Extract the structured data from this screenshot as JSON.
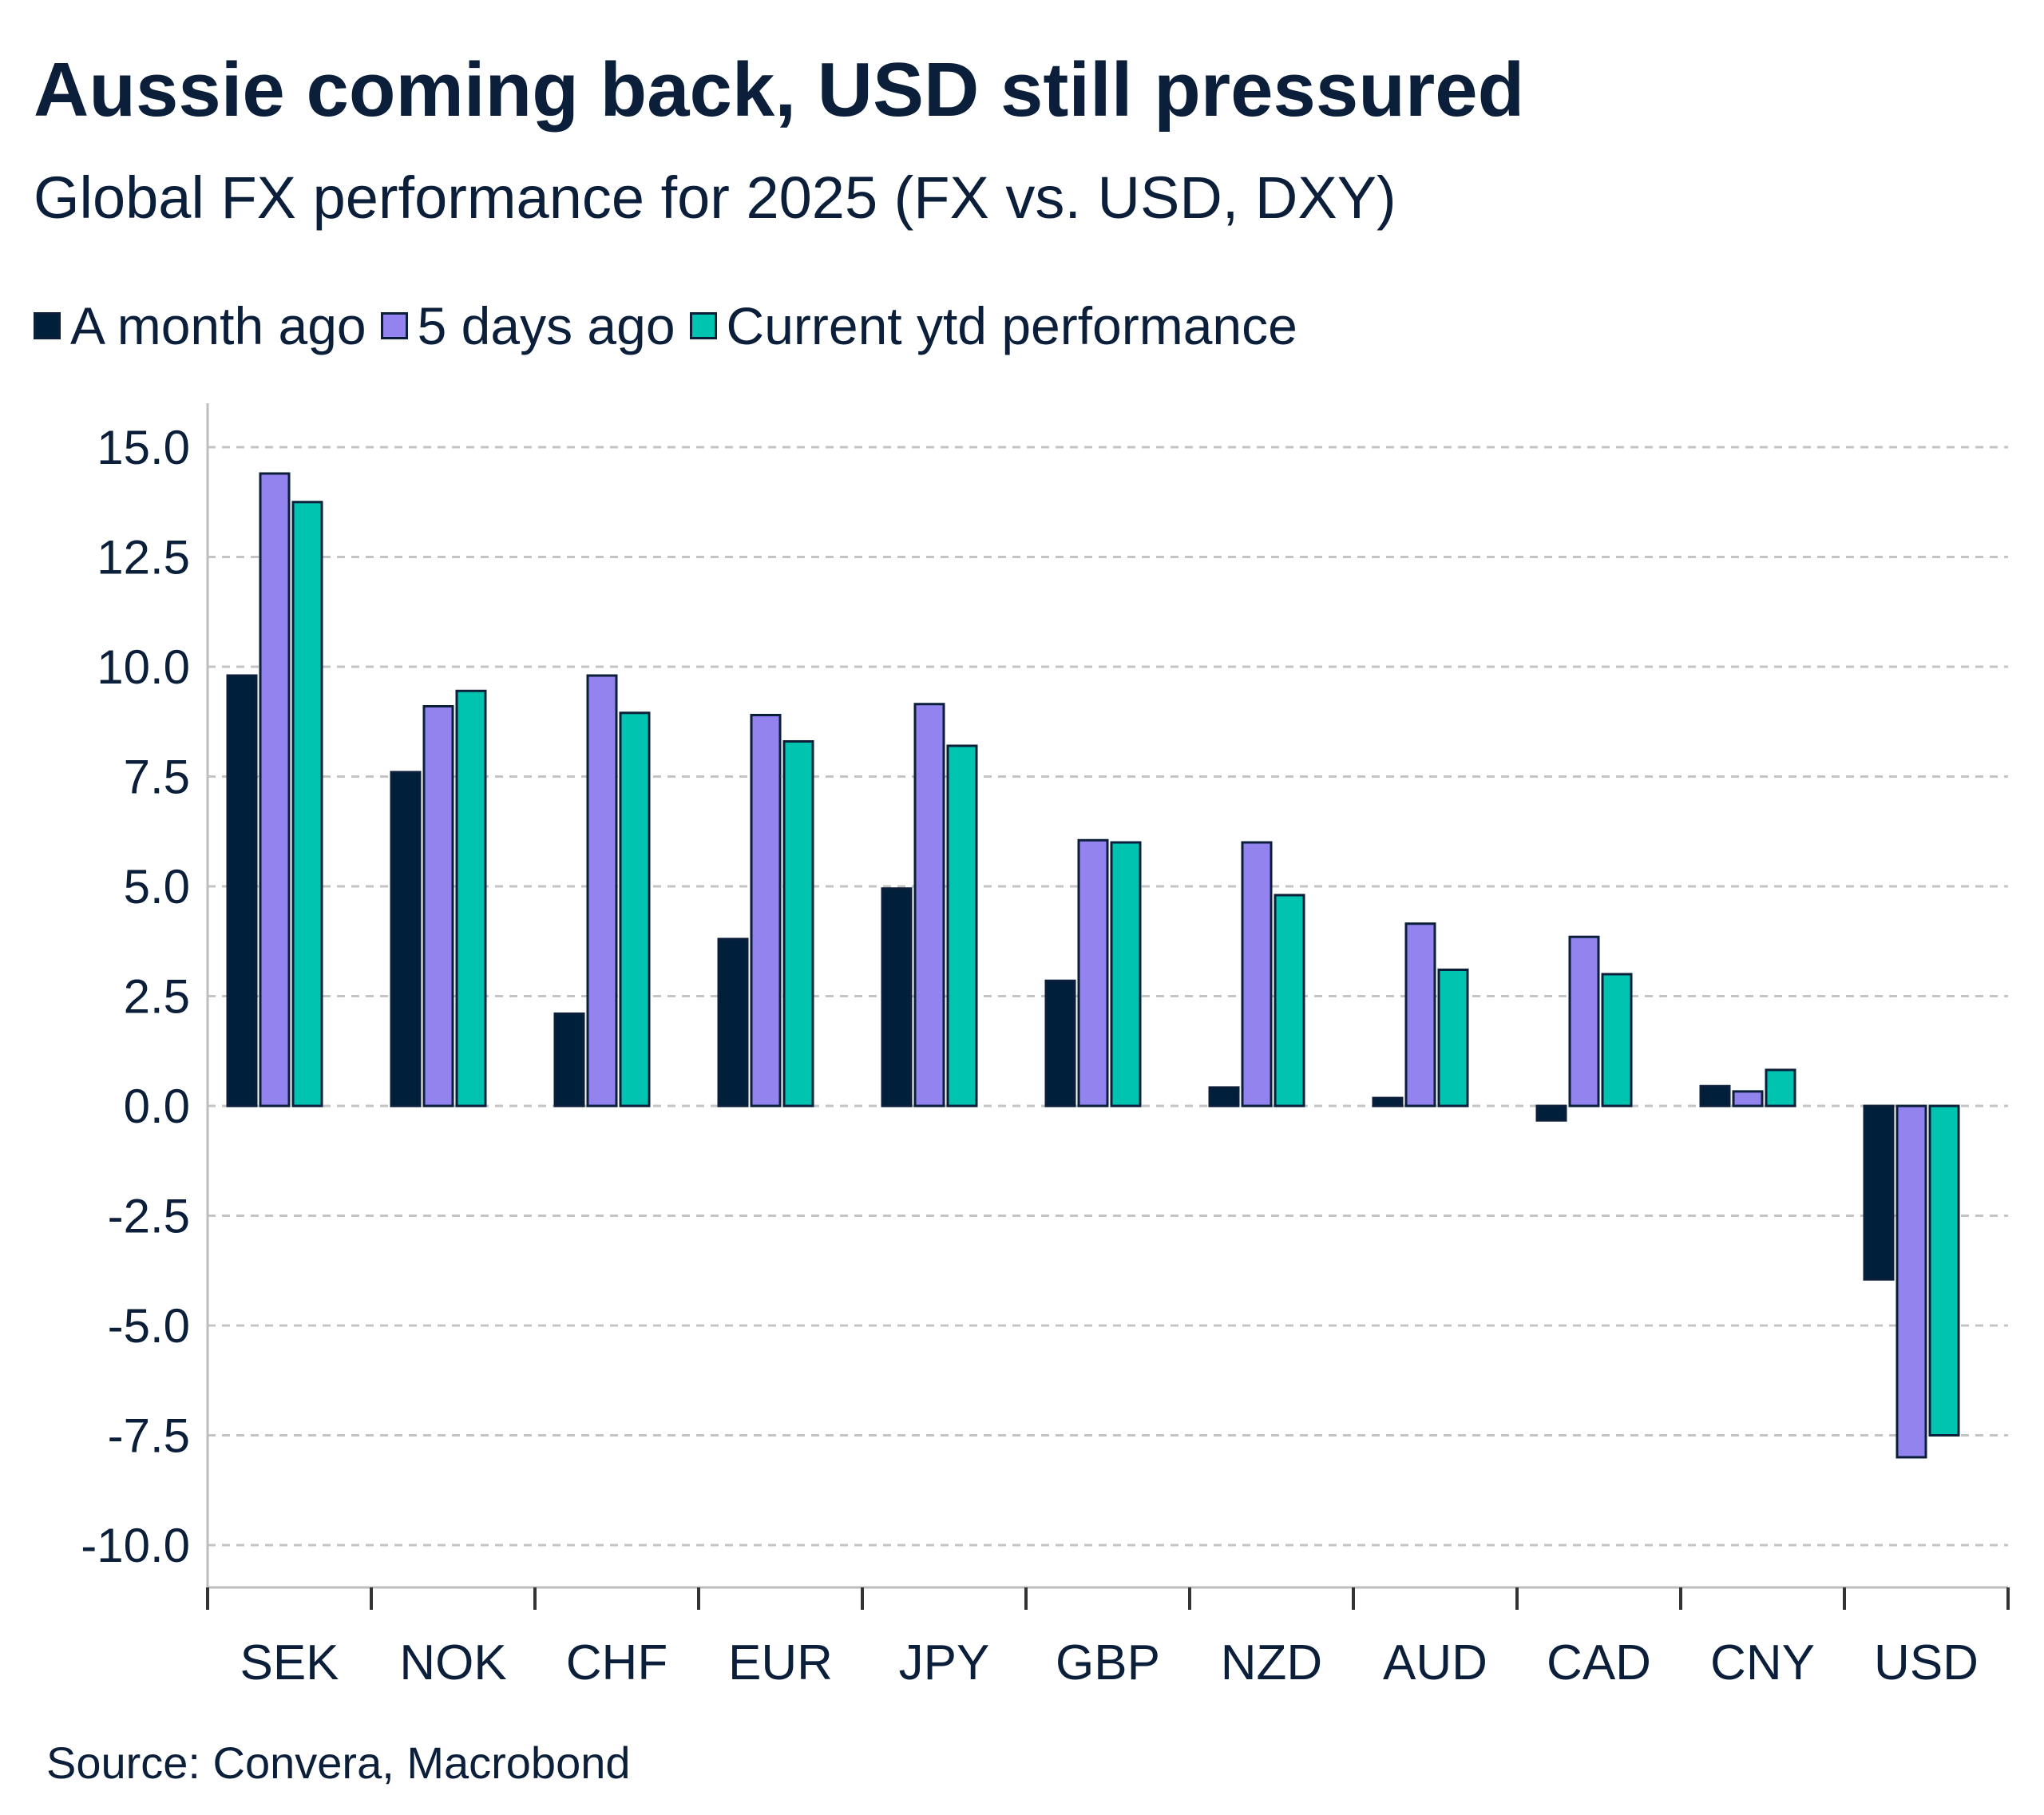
{
  "title": "Aussie coming back, USD still pressured",
  "subtitle": "Global FX performance for 2025 (FX vs. USD, DXY)",
  "source": "Source: Convera, Macrobond",
  "chart_data": {
    "type": "bar",
    "categories": [
      "SEK",
      "NOK",
      "CHF",
      "EUR",
      "JPY",
      "GBP",
      "NZD",
      "AUD",
      "CAD",
      "CNY",
      "USD"
    ],
    "series": [
      {
        "name": "A month ago",
        "color": "#001f3a",
        "values": [
          9.8,
          7.6,
          2.1,
          3.8,
          4.95,
          2.85,
          0.42,
          0.18,
          -0.33,
          0.45,
          -3.95
        ]
      },
      {
        "name": "5 days ago",
        "color": "#9283ef",
        "values": [
          14.4,
          9.1,
          9.8,
          8.9,
          9.15,
          6.05,
          6.0,
          4.15,
          3.85,
          0.33,
          -8.0
        ]
      },
      {
        "name": "Current ytd performance",
        "color": "#00c4b0",
        "values": [
          13.75,
          9.45,
          8.95,
          8.3,
          8.2,
          6.0,
          4.8,
          3.1,
          3.0,
          0.82,
          -7.5
        ]
      }
    ],
    "ylim": [
      -10,
      15
    ],
    "yticks": [
      "15.0",
      "12.5",
      "10.0",
      "7.5",
      "5.0",
      "2.5",
      "0.0",
      "-2.5",
      "-5.0",
      "-7.5",
      "-10.0"
    ],
    "ytick_values": [
      15,
      12.5,
      10,
      7.5,
      5,
      2.5,
      0,
      -2.5,
      -5,
      -7.5,
      -10
    ],
    "grid": true,
    "legend_position": "top-left",
    "xlabel": "",
    "ylabel": ""
  }
}
